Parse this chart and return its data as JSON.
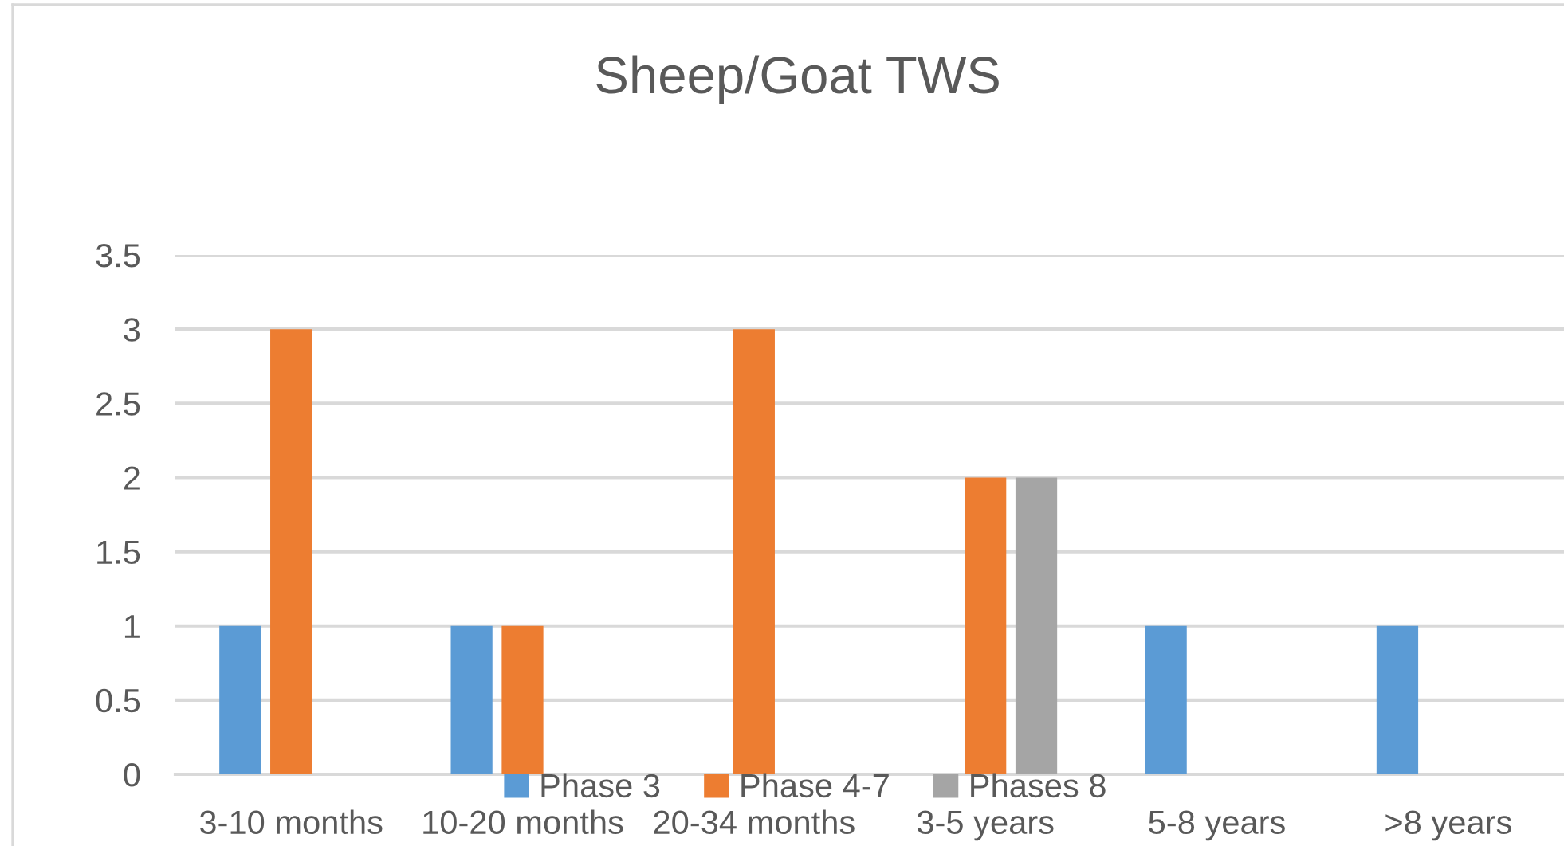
{
  "chart_data": {
    "type": "bar",
    "title": "Sheep/Goat TWS",
    "categories": [
      "3-10 months",
      "10-20 months",
      "20-34 months",
      "3-5 years",
      "5-8 years",
      ">8 years"
    ],
    "series": [
      {
        "name": "Phase 3",
        "color": "#5b9bd5",
        "values": [
          1,
          1,
          null,
          null,
          1,
          1
        ]
      },
      {
        "name": "Phase 4-7",
        "color": "#ed7d31",
        "values": [
          3,
          1,
          3,
          2,
          null,
          null
        ]
      },
      {
        "name": "Phases 8",
        "color": "#a5a5a5",
        "values": [
          null,
          null,
          null,
          2,
          null,
          null
        ]
      }
    ],
    "ylim": [
      0,
      3.5
    ],
    "yticks": [
      0,
      0.5,
      1,
      1.5,
      2,
      2.5,
      3,
      3.5
    ],
    "grid": "y",
    "legend": "bottom"
  }
}
